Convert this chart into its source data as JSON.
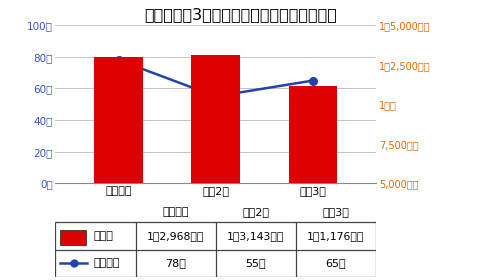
{
  "title": "令和元年〜3年の特殊詐欺被害件数・被害額",
  "categories": [
    "令和元年",
    "令和2年",
    "令和3年"
  ],
  "bar_values": [
    12968,
    13143,
    11176
  ],
  "line_values": [
    78,
    55,
    65
  ],
  "bar_color": "#dd0000",
  "line_color": "#2244aa",
  "left_yticks": [
    0,
    20,
    40,
    60,
    80,
    100
  ],
  "left_yticklabels": [
    "0件",
    "20件",
    "40件",
    "60件",
    "80件",
    "100件"
  ],
  "left_ylim": [
    0,
    100
  ],
  "right_yticks": [
    5000,
    7500,
    10000,
    12500,
    15000
  ],
  "right_yticklabels": [
    "5,000万円",
    "7,500万円",
    "1億円",
    "1億2,500万円",
    "1億5,000万円"
  ],
  "right_ylim": [
    5000,
    15000
  ],
  "left_tick_color": "#3355bb",
  "right_tick_color": "#e06800",
  "title_color": "#000000",
  "title_fontsize": 11.5,
  "background_color": "#ffffff",
  "table_row1_label": "被害額",
  "table_row1_values": [
    "1億2,968万円",
    "1億3,143万円",
    "1億1,176万円"
  ],
  "table_row2_label": "被害件数",
  "table_row2_values": [
    "78件",
    "55件",
    "65件"
  ],
  "grid_color": "#bbbbbb",
  "border_color": "#444444"
}
